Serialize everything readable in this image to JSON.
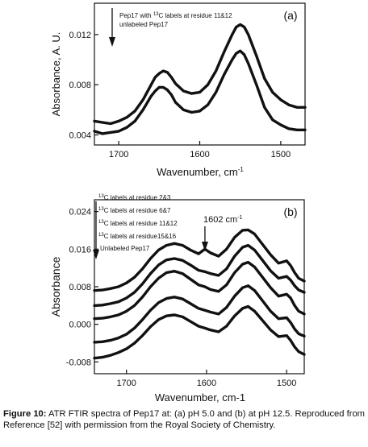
{
  "caption": {
    "label": "Figure 10:",
    "text": "ATR FTIR spectra of Pep17 at: (a) pH 5.0 and (b) at pH 12.5. Reproduced from Reference [52] with permission from the Royal Society of Chemistry."
  },
  "chart_data": [
    {
      "type": "line",
      "panel_label": "(a)",
      "xlabel": "Wavenumber, cm",
      "xlabel_sup": "-1",
      "ylabel": "Absorbance, A. U.",
      "xlim": [
        1730,
        1470
      ],
      "ylim": [
        0.0032,
        0.0145
      ],
      "xticks": [
        1700,
        1600,
        1500
      ],
      "yticks": [
        0.004,
        0.008,
        0.012
      ],
      "ytick_labels": [
        "0.004",
        "0.008",
        "0.012"
      ],
      "grid": false,
      "legend": {
        "placement": "top-left",
        "entries": [
          {
            "text": "Pep17 with ",
            "sup": "13",
            "text2": "C labels at residue 11&12"
          },
          {
            "text": "unlabeled Pep17",
            "sup": "",
            "text2": ""
          }
        ]
      },
      "series": [
        {
          "x": [
            1730,
            1720,
            1710,
            1700,
            1690,
            1680,
            1670,
            1660,
            1655,
            1650,
            1645,
            1640,
            1635,
            1630,
            1620,
            1610,
            1600,
            1590,
            1580,
            1570,
            1560,
            1555,
            1550,
            1545,
            1540,
            1530,
            1520,
            1510,
            1500,
            1490,
            1480,
            1470
          ],
          "values": [
            0.0051,
            0.005,
            0.0049,
            0.0051,
            0.0054,
            0.0059,
            0.0068,
            0.008,
            0.0086,
            0.0089,
            0.0091,
            0.009,
            0.0086,
            0.0081,
            0.0075,
            0.0073,
            0.0074,
            0.008,
            0.0091,
            0.0106,
            0.012,
            0.0126,
            0.0128,
            0.0126,
            0.012,
            0.0103,
            0.0085,
            0.0074,
            0.0068,
            0.0064,
            0.0062,
            0.0062
          ]
        },
        {
          "x": [
            1730,
            1720,
            1710,
            1700,
            1690,
            1680,
            1670,
            1660,
            1655,
            1650,
            1645,
            1640,
            1635,
            1630,
            1620,
            1610,
            1600,
            1590,
            1580,
            1570,
            1560,
            1555,
            1550,
            1545,
            1540,
            1530,
            1520,
            1510,
            1500,
            1490,
            1480,
            1470
          ],
          "values": [
            0.0043,
            0.0041,
            0.0042,
            0.0043,
            0.0046,
            0.0051,
            0.006,
            0.0071,
            0.0075,
            0.0078,
            0.0078,
            0.0076,
            0.0072,
            0.0066,
            0.006,
            0.0058,
            0.0059,
            0.0064,
            0.0074,
            0.0088,
            0.01,
            0.0105,
            0.0107,
            0.0104,
            0.0097,
            0.008,
            0.0062,
            0.0052,
            0.0048,
            0.0045,
            0.0044,
            0.0044
          ]
        }
      ]
    },
    {
      "type": "line",
      "panel_label": "(b)",
      "xlabel": "Wavenumber, cm-1",
      "ylabel": "Absorbance",
      "xlim": [
        1740,
        1478
      ],
      "ylim": [
        -0.0105,
        0.0265
      ],
      "xticks": [
        1700,
        1600,
        1500
      ],
      "yticks": [
        -0.008,
        0.0,
        0.008,
        0.016,
        0.024
      ],
      "ytick_labels": [
        "-0.008",
        "0.000",
        "0.008",
        "0.016",
        "0.024"
      ],
      "grid": false,
      "annotation": {
        "text": "1602 cm",
        "sup": "-1",
        "x": 1602
      },
      "legend": {
        "placement": "top-left",
        "entries": [
          {
            "text": "",
            "sup": "13",
            "text2": "C labels at residue 2&3"
          },
          {
            "text": "",
            "sup": "13",
            "text2": "C labels at residue 6&7"
          },
          {
            "text": "",
            "sup": "13",
            "text2": "C labels at residue 11&12"
          },
          {
            "text": "",
            "sup": "13",
            "text2": "C labels at residue15&16"
          },
          {
            "text": "Unlabeled Pep17",
            "sup": "",
            "text2": ""
          }
        ]
      },
      "series": [
        {
          "x": [
            1740,
            1730,
            1720,
            1710,
            1700,
            1690,
            1680,
            1670,
            1660,
            1650,
            1640,
            1630,
            1620,
            1610,
            1602,
            1595,
            1585,
            1575,
            1565,
            1555,
            1548,
            1540,
            1530,
            1520,
            1510,
            1500,
            1495,
            1490,
            1485,
            1478
          ],
          "values": [
            0.0072,
            0.0073,
            0.0076,
            0.008,
            0.0088,
            0.01,
            0.0118,
            0.014,
            0.0158,
            0.0168,
            0.0172,
            0.0168,
            0.0158,
            0.015,
            0.016,
            0.0152,
            0.0145,
            0.016,
            0.0185,
            0.02,
            0.0201,
            0.0192,
            0.017,
            0.0148,
            0.013,
            0.0135,
            0.0125,
            0.011,
            0.0098,
            0.0092
          ]
        },
        {
          "x": [
            1740,
            1730,
            1720,
            1710,
            1700,
            1690,
            1680,
            1670,
            1660,
            1650,
            1640,
            1630,
            1620,
            1610,
            1602,
            1595,
            1585,
            1575,
            1565,
            1555,
            1548,
            1540,
            1530,
            1520,
            1510,
            1500,
            1495,
            1490,
            1485,
            1478
          ],
          "values": [
            0.004,
            0.0041,
            0.0044,
            0.0048,
            0.0056,
            0.0068,
            0.0086,
            0.0108,
            0.0126,
            0.0137,
            0.014,
            0.0136,
            0.0126,
            0.0115,
            0.0112,
            0.0108,
            0.0104,
            0.0118,
            0.0145,
            0.0164,
            0.0168,
            0.0158,
            0.0136,
            0.0114,
            0.0098,
            0.0102,
            0.0094,
            0.0082,
            0.0073,
            0.0068
          ]
        },
        {
          "x": [
            1740,
            1730,
            1720,
            1710,
            1700,
            1690,
            1680,
            1670,
            1660,
            1650,
            1640,
            1630,
            1620,
            1610,
            1602,
            1595,
            1585,
            1575,
            1565,
            1555,
            1548,
            1540,
            1530,
            1520,
            1510,
            1500,
            1495,
            1490,
            1485,
            1478
          ],
          "values": [
            0.0012,
            0.0013,
            0.0016,
            0.002,
            0.0028,
            0.004,
            0.0058,
            0.008,
            0.0098,
            0.011,
            0.0113,
            0.0108,
            0.0096,
            0.0084,
            0.008,
            0.0074,
            0.007,
            0.0084,
            0.011,
            0.0128,
            0.0132,
            0.0122,
            0.01,
            0.0078,
            0.006,
            0.0064,
            0.0056,
            0.004,
            0.0028,
            0.0022
          ]
        },
        {
          "x": [
            1740,
            1730,
            1720,
            1710,
            1700,
            1690,
            1680,
            1670,
            1660,
            1650,
            1640,
            1630,
            1620,
            1610,
            1602,
            1595,
            1585,
            1575,
            1565,
            1555,
            1548,
            1540,
            1530,
            1520,
            1510,
            1500,
            1495,
            1490,
            1485,
            1478
          ],
          "values": [
            -0.0038,
            -0.0037,
            -0.0034,
            -0.0029,
            -0.0021,
            -0.0008,
            0.001,
            0.003,
            0.0046,
            0.0055,
            0.0058,
            0.0054,
            0.0044,
            0.0034,
            0.003,
            0.0026,
            0.0022,
            0.0036,
            0.006,
            0.0078,
            0.0082,
            0.0072,
            0.005,
            0.0028,
            0.0012,
            0.0014,
            0.0004,
            -0.001,
            -0.002,
            -0.0025
          ]
        },
        {
          "x": [
            1740,
            1730,
            1720,
            1710,
            1700,
            1690,
            1680,
            1670,
            1660,
            1650,
            1640,
            1630,
            1620,
            1610,
            1602,
            1595,
            1585,
            1575,
            1565,
            1555,
            1548,
            1540,
            1530,
            1520,
            1510,
            1500,
            1495,
            1490,
            1485,
            1478
          ],
          "values": [
            -0.0072,
            -0.007,
            -0.0066,
            -0.006,
            -0.0052,
            -0.004,
            -0.0024,
            -0.0005,
            0.001,
            0.0018,
            0.002,
            0.0016,
            0.0006,
            -0.0004,
            -0.0008,
            -0.0012,
            -0.0016,
            -0.0004,
            0.0018,
            0.0034,
            0.0038,
            0.0028,
            0.0008,
            -0.0012,
            -0.0026,
            -0.0024,
            -0.0034,
            -0.0048,
            -0.0058,
            -0.0064
          ]
        }
      ]
    }
  ]
}
